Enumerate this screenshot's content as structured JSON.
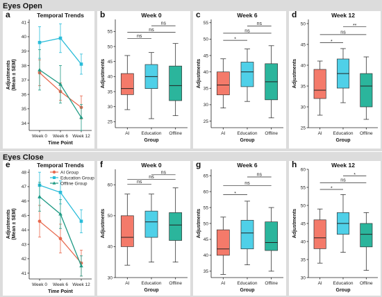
{
  "sections": [
    {
      "title": "Eyes Open"
    },
    {
      "title": "Eyes Close"
    }
  ],
  "chart_data": [
    {
      "panel": "a",
      "type": "line",
      "title": "Temporal Trends",
      "xlabel": "Time Point",
      "ylabel": [
        "Adjustments",
        "(Mean ± SEM)"
      ],
      "categories": [
        "Week 0",
        "Week 6",
        "Week 12"
      ],
      "ylim": [
        33.5,
        41.2
      ],
      "yticks": [
        34,
        35,
        36,
        37,
        38,
        39,
        40,
        41
      ],
      "series": [
        {
          "name": "AI Group",
          "color": "#e8694e",
          "marker": "circle",
          "values": [
            37.5,
            36.2,
            35.1
          ],
          "err": [
            0.9,
            0.6,
            0.8
          ]
        },
        {
          "name": "Education Group",
          "color": "#29bcd9",
          "marker": "square",
          "values": [
            39.6,
            39.9,
            38.1
          ],
          "err": [
            1.1,
            1.0,
            0.7
          ]
        },
        {
          "name": "Offline Group",
          "color": "#1f9a84",
          "marker": "triangle",
          "values": [
            37.7,
            36.7,
            34.4
          ],
          "err": [
            1.4,
            1.3,
            0.9
          ]
        }
      ]
    },
    {
      "panel": "b",
      "type": "box",
      "title": "Week 0",
      "xlabel": "Group",
      "ylabel": "Adjustments",
      "categories": [
        "AI",
        "Education",
        "Offline"
      ],
      "ylim": [
        23,
        59
      ],
      "yticks": [
        25,
        30,
        35,
        40,
        45,
        50,
        55
      ],
      "boxes": [
        {
          "min": 29,
          "q1": 34,
          "median": 36,
          "q3": 41,
          "max": 47,
          "color": "#f47a6a"
        },
        {
          "min": 26,
          "q1": 36,
          "median": 40,
          "q3": 44,
          "max": 48,
          "color": "#4fd0e8"
        },
        {
          "min": 27,
          "q1": 32,
          "median": 37,
          "q3": 43.5,
          "max": 51,
          "color": "#2bb59c"
        }
      ],
      "significance": [
        {
          "from": 0,
          "to": 1,
          "label": "ns",
          "level": 1
        },
        {
          "from": 0,
          "to": 2,
          "label": "ns",
          "level": 2
        },
        {
          "from": 1,
          "to": 2,
          "label": "ns",
          "level": 3
        }
      ]
    },
    {
      "panel": "c",
      "type": "box",
      "title": "Week 6",
      "xlabel": "Group",
      "ylabel": "Adjustments",
      "categories": [
        "AI",
        "Education",
        "Offline"
      ],
      "ylim": [
        23,
        56
      ],
      "yticks": [
        25,
        30,
        35,
        40,
        45,
        50,
        55
      ],
      "boxes": [
        {
          "min": 29,
          "q1": 33,
          "median": 36,
          "q3": 40,
          "max": 44,
          "color": "#f47a6a"
        },
        {
          "min": 31,
          "q1": 35.5,
          "median": 40,
          "q3": 43,
          "max": 47,
          "color": "#4fd0e8"
        },
        {
          "min": 26,
          "q1": 31.5,
          "median": 37,
          "q3": 42.5,
          "max": 48,
          "color": "#2bb59c"
        }
      ],
      "significance": [
        {
          "from": 0,
          "to": 1,
          "label": "*",
          "level": 1
        },
        {
          "from": 0,
          "to": 2,
          "label": "ns",
          "level": 2
        },
        {
          "from": 1,
          "to": 2,
          "label": "ns",
          "level": 3
        }
      ]
    },
    {
      "panel": "d",
      "type": "box",
      "title": "Week 12",
      "xlabel": "Group",
      "ylabel": "Adjustments",
      "categories": [
        "AI",
        "Education",
        "Offline"
      ],
      "ylim": [
        25,
        51
      ],
      "yticks": [
        25,
        30,
        35,
        40,
        45,
        50
      ],
      "boxes": [
        {
          "min": 28,
          "q1": 32,
          "median": 34,
          "q3": 39,
          "max": 41,
          "color": "#f47a6a"
        },
        {
          "min": 31,
          "q1": 34.5,
          "median": 38,
          "q3": 41.5,
          "max": 44,
          "color": "#4fd0e8"
        },
        {
          "min": 27,
          "q1": 30,
          "median": 35,
          "q3": 38,
          "max": 42,
          "color": "#2bb59c"
        }
      ],
      "significance": [
        {
          "from": 0,
          "to": 1,
          "label": "*",
          "level": 1
        },
        {
          "from": 0,
          "to": 2,
          "label": "ns",
          "level": 2,
          "small": true
        },
        {
          "from": 1,
          "to": 2,
          "label": "**",
          "level": 3
        }
      ]
    },
    {
      "panel": "e",
      "type": "line",
      "title": "Temporal Trends",
      "xlabel": "Time Point",
      "ylabel": [
        "Adjustments",
        "(Mean ± SEM)"
      ],
      "categories": [
        "Week 0",
        "Week 6",
        "Week 12"
      ],
      "ylim": [
        40.6,
        48.2
      ],
      "yticks": [
        41,
        42,
        43,
        44,
        45,
        46,
        47,
        48
      ],
      "legend": "top-center",
      "series": [
        {
          "name": "AI Group",
          "color": "#e8694e",
          "marker": "circle",
          "values": [
            44.6,
            43.4,
            41.7
          ],
          "err": [
            1.1,
            1.0,
            0.9
          ]
        },
        {
          "name": "Education Group",
          "color": "#29bcd9",
          "marker": "square",
          "values": [
            47.1,
            46.6,
            44.6
          ],
          "err": [
            0.9,
            0.8,
            0.8
          ]
        },
        {
          "name": "Offline Group",
          "color": "#1f9a84",
          "marker": "triangle",
          "values": [
            46.3,
            45.1,
            41.5
          ],
          "err": [
            1.0,
            1.0,
            0.7
          ]
        }
      ]
    },
    {
      "panel": "f",
      "type": "box",
      "title": "Week 0",
      "xlabel": "Group",
      "ylabel": "Adjustments",
      "categories": [
        "AI",
        "Education",
        "Offline"
      ],
      "ylim": [
        30,
        65
      ],
      "yticks": [
        30,
        40,
        50,
        60
      ],
      "boxes": [
        {
          "min": 34,
          "q1": 40,
          "median": 43,
          "q3": 50,
          "max": 57,
          "color": "#f47a6a"
        },
        {
          "min": 35,
          "q1": 43,
          "median": 48,
          "q3": 51.5,
          "max": 57,
          "color": "#4fd0e8"
        },
        {
          "min": 35,
          "q1": 42,
          "median": 47,
          "q3": 51,
          "max": 59,
          "color": "#2bb59c"
        }
      ],
      "significance": [
        {
          "from": 0,
          "to": 1,
          "label": "ns",
          "level": 1
        },
        {
          "from": 0,
          "to": 2,
          "label": "ns",
          "level": 2
        },
        {
          "from": 1,
          "to": 2,
          "label": "ns",
          "level": 3
        }
      ]
    },
    {
      "panel": "g",
      "type": "box",
      "title": "Week 6",
      "xlabel": "Group",
      "ylabel": "Adjustments",
      "categories": [
        "AI",
        "Education",
        "Offline"
      ],
      "ylim": [
        33,
        67
      ],
      "yticks": [
        35,
        40,
        45,
        50,
        55,
        60,
        65
      ],
      "boxes": [
        {
          "min": 34,
          "q1": 40,
          "median": 42,
          "q3": 48,
          "max": 52,
          "color": "#f47a6a"
        },
        {
          "min": 37,
          "q1": 42,
          "median": 47,
          "q3": 51,
          "max": 57,
          "color": "#4fd0e8"
        },
        {
          "min": 35,
          "q1": 41.5,
          "median": 44,
          "q3": 50.5,
          "max": 55,
          "color": "#2bb59c"
        }
      ],
      "significance": [
        {
          "from": 0,
          "to": 1,
          "label": "*",
          "level": 1
        },
        {
          "from": 0,
          "to": 2,
          "label": "ns",
          "level": 2
        },
        {
          "from": 1,
          "to": 2,
          "label": "ns",
          "level": 3
        }
      ]
    },
    {
      "panel": "h",
      "type": "box",
      "title": "Week 12",
      "xlabel": "Group",
      "ylabel": "Adjustments",
      "categories": [
        "AI",
        "Education",
        "Offline"
      ],
      "ylim": [
        30,
        60
      ],
      "yticks": [
        30,
        35,
        40,
        45,
        50,
        55,
        60
      ],
      "boxes": [
        {
          "min": 34,
          "q1": 38,
          "median": 41,
          "q3": 46,
          "max": 49,
          "color": "#f47a6a"
        },
        {
          "min": 37,
          "q1": 42,
          "median": 45,
          "q3": 48,
          "max": 53,
          "color": "#4fd0e8"
        },
        {
          "min": 32,
          "q1": 38.5,
          "median": 42,
          "q3": 45,
          "max": 48,
          "color": "#2bb59c"
        }
      ],
      "significance": [
        {
          "from": 0,
          "to": 1,
          "label": "*",
          "level": 1
        },
        {
          "from": 0,
          "to": 2,
          "label": "ns",
          "level": 2
        },
        {
          "from": 1,
          "to": 2,
          "label": "*",
          "level": 3
        }
      ]
    }
  ]
}
